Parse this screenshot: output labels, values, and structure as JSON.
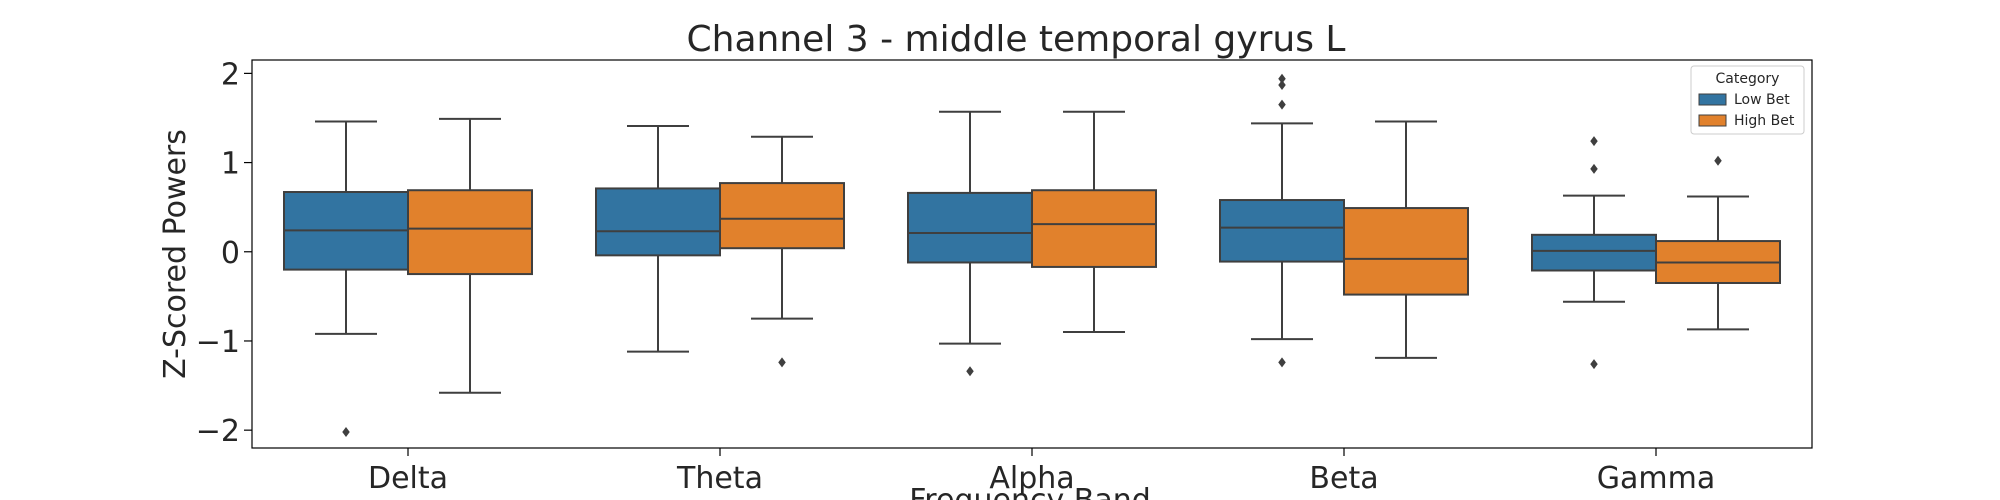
{
  "chart_data": {
    "type": "box",
    "title": "Channel 3 - middle temporal gyrus L",
    "xlabel": "Frequency Band",
    "ylabel": "Z-Scored Powers",
    "categories": [
      "Delta",
      "Theta",
      "Alpha",
      "Beta",
      "Gamma"
    ],
    "ylim": [
      -2.2,
      2.15
    ],
    "yticks": [
      -2,
      -1,
      0,
      1,
      2
    ],
    "yticklabels": [
      "−2",
      "−1",
      "0",
      "1",
      "2"
    ],
    "grid": false,
    "legend": {
      "title": "Category",
      "position": "top-right"
    },
    "series": [
      {
        "name": "Low Bet",
        "color": "#3274a1",
        "boxes": [
          {
            "whisker_low": -0.92,
            "q1": -0.2,
            "median": 0.24,
            "q3": 0.67,
            "whisker_high": 1.46,
            "outliers": [
              -2.02
            ]
          },
          {
            "whisker_low": -1.12,
            "q1": -0.04,
            "median": 0.23,
            "q3": 0.71,
            "whisker_high": 1.41,
            "outliers": []
          },
          {
            "whisker_low": -1.03,
            "q1": -0.12,
            "median": 0.21,
            "q3": 0.66,
            "whisker_high": 1.57,
            "outliers": [
              -1.34
            ]
          },
          {
            "whisker_low": -0.98,
            "q1": -0.11,
            "median": 0.27,
            "q3": 0.58,
            "whisker_high": 1.44,
            "outliers": [
              -1.24,
              1.65,
              1.87,
              1.94
            ]
          },
          {
            "whisker_low": -0.56,
            "q1": -0.21,
            "median": 0.01,
            "q3": 0.19,
            "whisker_high": 0.63,
            "outliers": [
              -1.26,
              0.93,
              1.24
            ]
          }
        ]
      },
      {
        "name": "High Bet",
        "color": "#e1812c",
        "boxes": [
          {
            "whisker_low": -1.58,
            "q1": -0.25,
            "median": 0.26,
            "q3": 0.69,
            "whisker_high": 1.49,
            "outliers": []
          },
          {
            "whisker_low": -0.75,
            "q1": 0.04,
            "median": 0.37,
            "q3": 0.77,
            "whisker_high": 1.29,
            "outliers": [
              -1.24
            ]
          },
          {
            "whisker_low": -0.9,
            "q1": -0.17,
            "median": 0.31,
            "q3": 0.69,
            "whisker_high": 1.57,
            "outliers": []
          },
          {
            "whisker_low": -1.19,
            "q1": -0.48,
            "median": -0.08,
            "q3": 0.49,
            "whisker_high": 1.46,
            "outliers": []
          },
          {
            "whisker_low": -0.87,
            "q1": -0.35,
            "median": -0.12,
            "q3": 0.12,
            "whisker_high": 0.62,
            "outliers": [
              1.02
            ]
          }
        ]
      }
    ]
  }
}
